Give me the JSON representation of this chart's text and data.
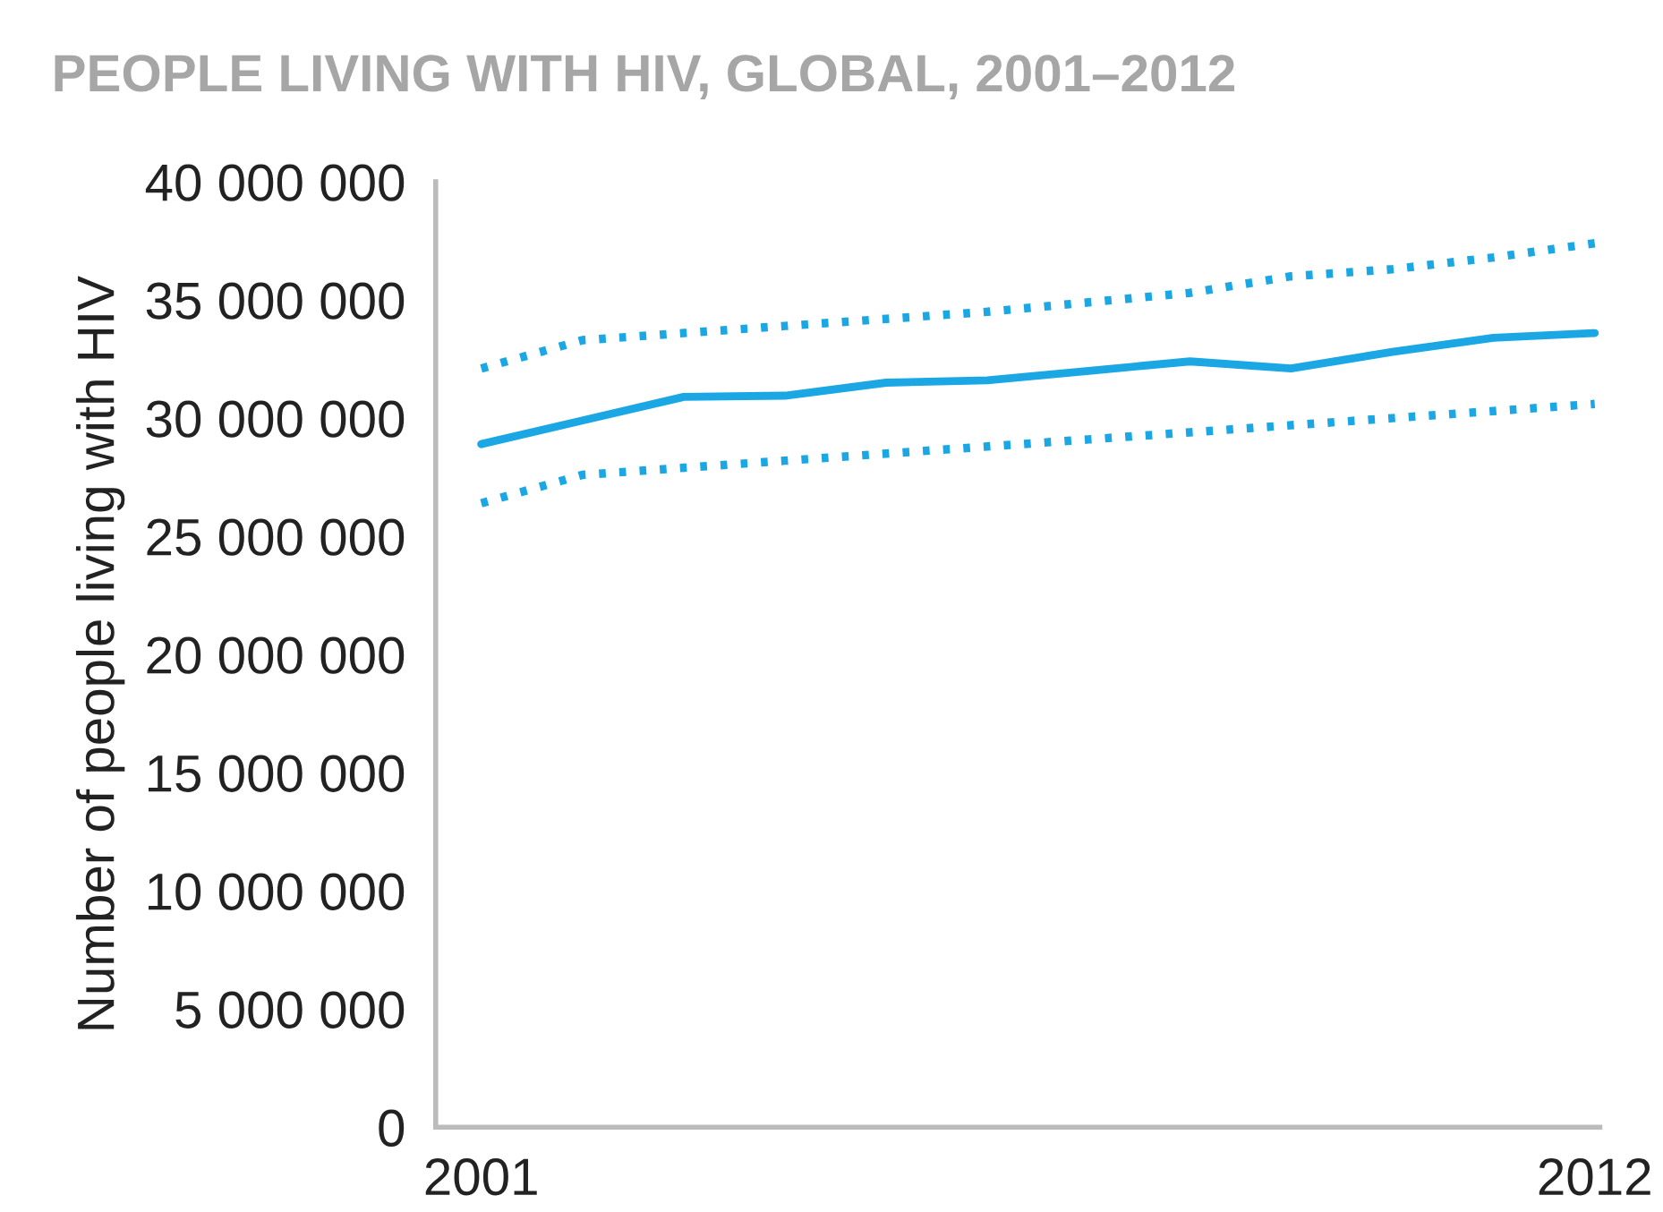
{
  "chart_data": {
    "type": "line",
    "title": "PEOPLE LIVING WITH HIV, GLOBAL, 2001–2012",
    "ylabel": "Number of people living with HIV",
    "x": [
      2001,
      2002,
      2003,
      2004,
      2005,
      2006,
      2007,
      2008,
      2009,
      2010,
      2011,
      2012
    ],
    "series": [
      {
        "color": "#1aa7e4",
        "line_style": "dotted",
        "values": [
          32100000,
          33300000,
          33600000,
          33900000,
          34200000,
          34500000,
          34900000,
          35300000,
          36000000,
          36300000,
          36800000,
          37400000
        ]
      },
      {
        "color": "#1aa7e4",
        "line_style": "solid",
        "values": [
          28900000,
          29900000,
          30900000,
          30950000,
          31500000,
          31600000,
          32000000,
          32400000,
          32100000,
          32800000,
          33400000,
          33600000
        ]
      },
      {
        "color": "#1aa7e4",
        "line_style": "dotted",
        "values": [
          26400000,
          27600000,
          27900000,
          28200000,
          28500000,
          28800000,
          29100000,
          29400000,
          29700000,
          30000000,
          30300000,
          30600000
        ]
      }
    ],
    "xlim": [
      2000.55,
      2012.05
    ],
    "xticks": [
      2001,
      2012
    ],
    "ylim": [
      0,
      40000000
    ],
    "yticks": [
      {
        "value": 0,
        "label": "0"
      },
      {
        "value": 5000000,
        "label": "5 000 000"
      },
      {
        "value": 10000000,
        "label": "10 000 000"
      },
      {
        "value": 15000000,
        "label": "15 000 000"
      },
      {
        "value": 20000000,
        "label": "20 000 000"
      },
      {
        "value": 25000000,
        "label": "25 000 000"
      },
      {
        "value": 30000000,
        "label": "30 000 000"
      },
      {
        "value": 35000000,
        "label": "35 000 000"
      },
      {
        "value": 40000000,
        "label": "40 000 000"
      }
    ],
    "grid": false,
    "legend": false,
    "marker": "none"
  }
}
